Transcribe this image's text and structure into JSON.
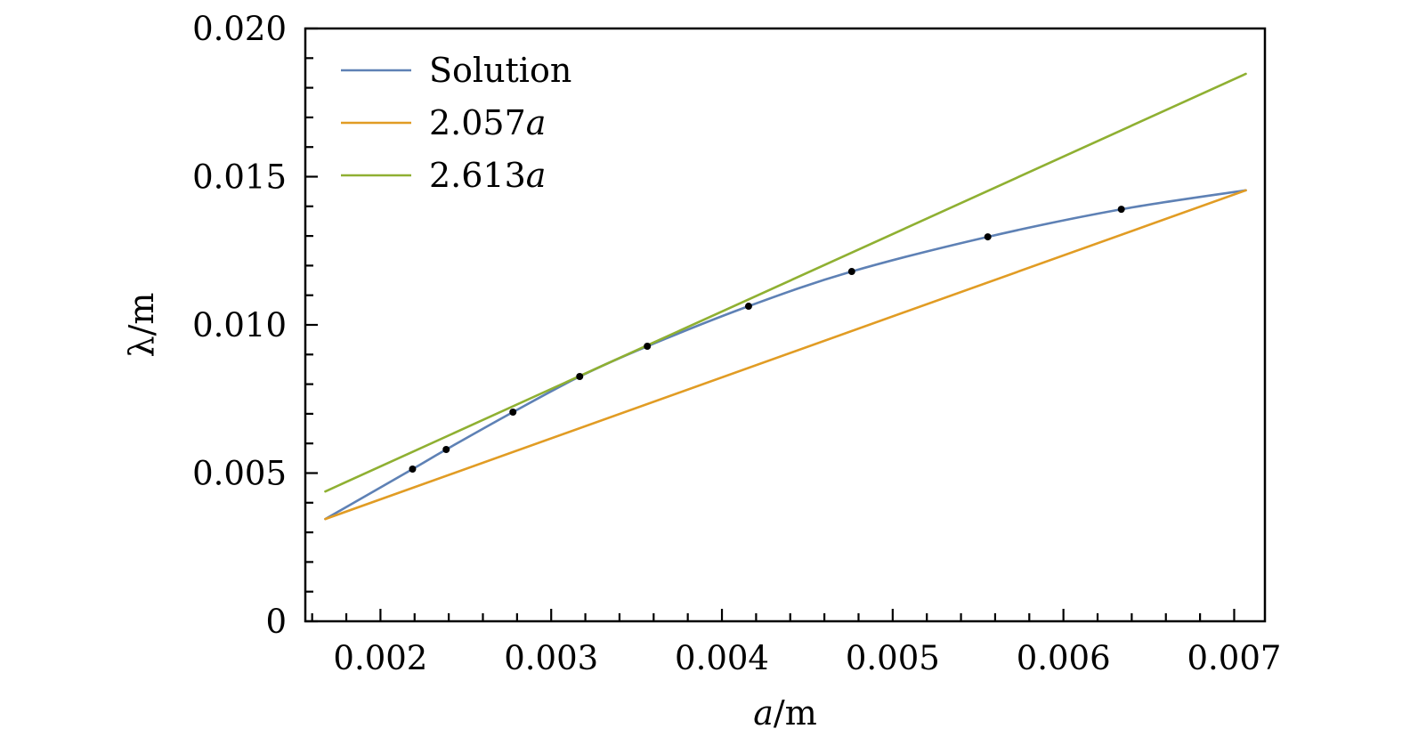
{
  "chart_data": {
    "type": "line",
    "title": "",
    "xlabel": "a/m",
    "ylabel": "λ/m",
    "xlim": [
      0.00156,
      0.00718
    ],
    "ylim": [
      0,
      0.02
    ],
    "x_ticks": [
      0.002,
      0.003,
      0.004,
      0.005,
      0.006,
      0.007
    ],
    "x_tick_labels": [
      "0.002",
      "0.003",
      "0.004",
      "0.005",
      "0.006",
      "0.007"
    ],
    "y_ticks": [
      0,
      0.005,
      0.01,
      0.015,
      0.02
    ],
    "y_tick_labels": [
      "0",
      "0.005",
      "0.010",
      "0.015",
      "0.020"
    ],
    "x_minor_step": 0.0002,
    "y_minor_step": 0.001,
    "grid": false,
    "legend_position": "top-left",
    "series": [
      {
        "name": "Solution",
        "color": "#5e81b5",
        "x": [
          0.001677,
          0.002188,
          0.002385,
          0.002776,
          0.003167,
          0.003563,
          0.004156,
          0.00476,
          0.005557,
          0.006339,
          0.007068
        ],
        "y": [
          0.00345,
          0.005135,
          0.005796,
          0.007057,
          0.008258,
          0.009279,
          0.01063,
          0.0118,
          0.01297,
          0.0139,
          0.01454
        ],
        "markers": {
          "color": "#000000",
          "x": [
            0.002188,
            0.002385,
            0.002776,
            0.003167,
            0.003563,
            0.004156,
            0.00476,
            0.005557,
            0.006339
          ],
          "y": [
            0.005135,
            0.005796,
            0.007057,
            0.008258,
            0.009279,
            0.01063,
            0.0118,
            0.01297,
            0.0139
          ]
        }
      },
      {
        "name": "2.057a",
        "color": "#e19c24",
        "slope": 2.057,
        "x": [
          0.001677,
          0.007068
        ],
        "y": [
          0.00345,
          0.01454
        ]
      },
      {
        "name": "2.613a",
        "color": "#8fb032",
        "slope": 2.613,
        "x": [
          0.001677,
          0.007068
        ],
        "y": [
          0.00438,
          0.01847
        ]
      }
    ]
  }
}
